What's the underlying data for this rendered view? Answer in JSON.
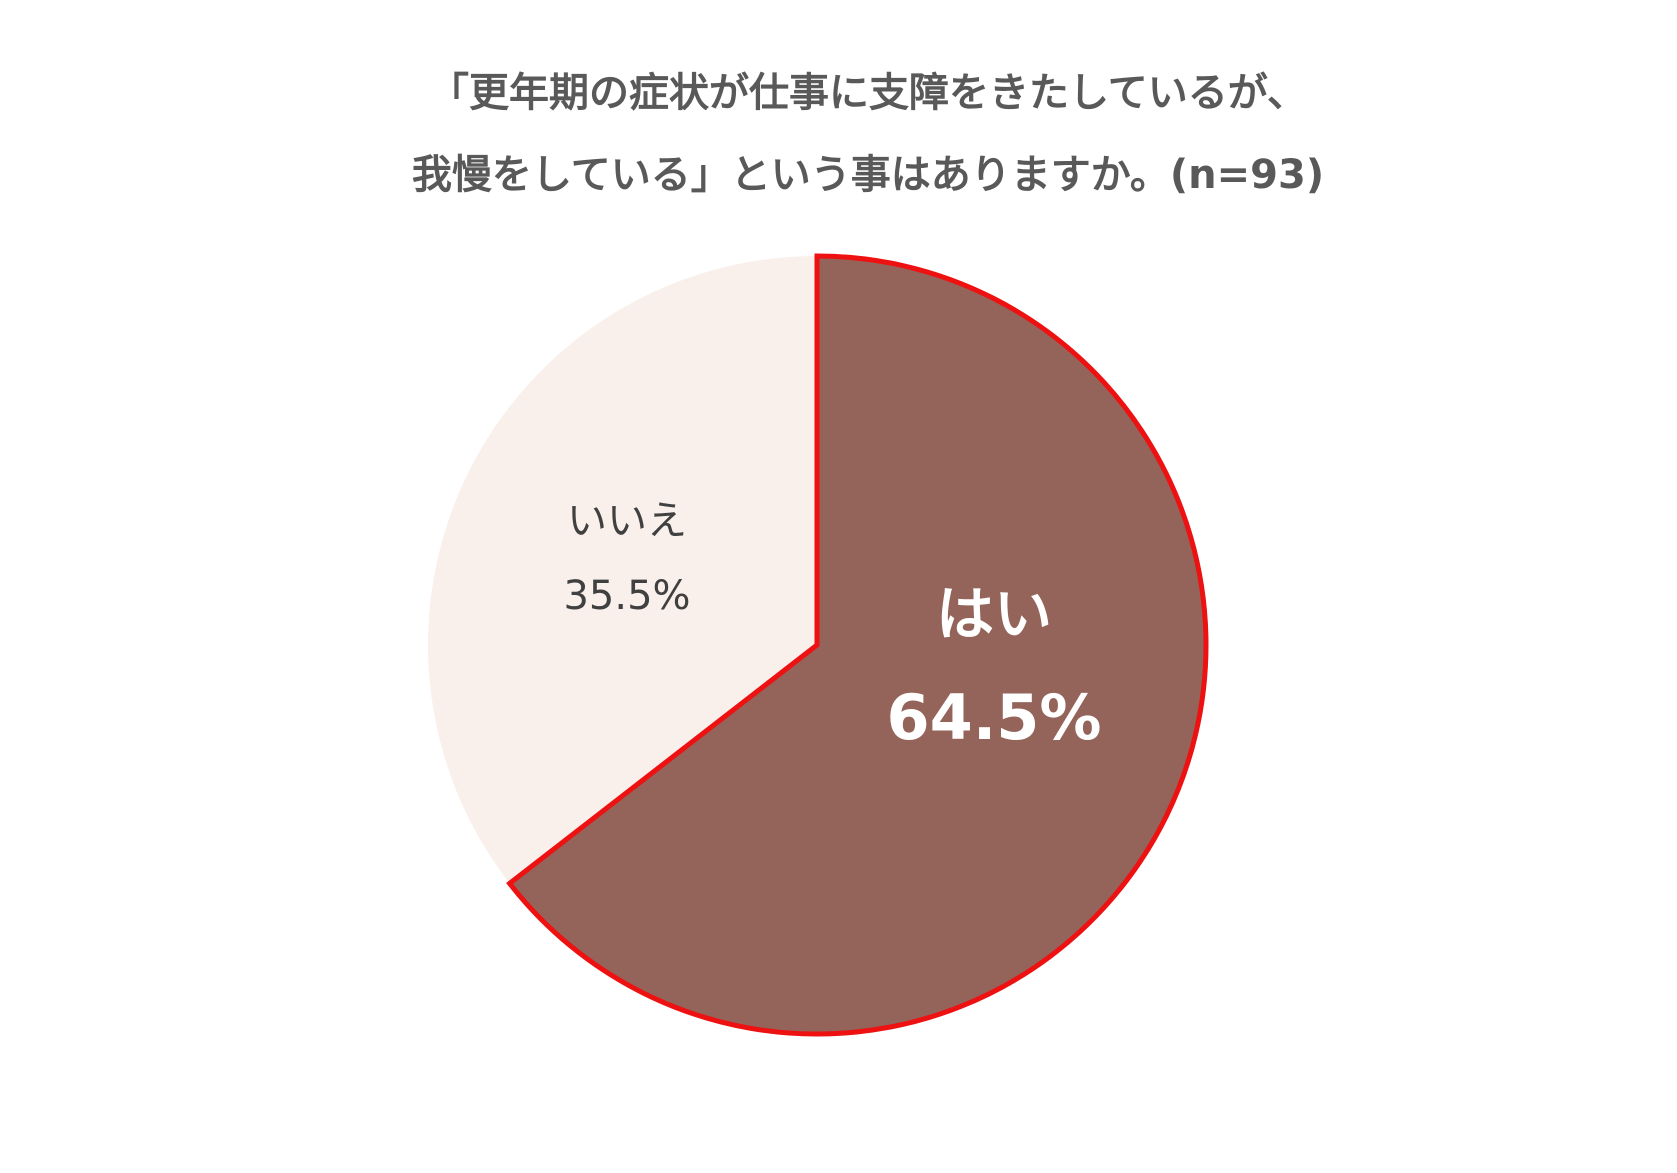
{
  "chart_data": {
    "type": "pie",
    "title": [
      "「更年期の症状が仕事に支障をきたしているが、",
      "我慢をしている」という事はありますか。(n=93)"
    ],
    "categories": [
      "はい",
      "いいえ"
    ],
    "values": [
      64.5,
      35.5
    ],
    "value_labels": [
      "64.5%",
      "35.5%"
    ],
    "colors": [
      "#946359",
      "#f9efeb"
    ],
    "edge_colors": [
      "#ee1111",
      "none"
    ]
  }
}
